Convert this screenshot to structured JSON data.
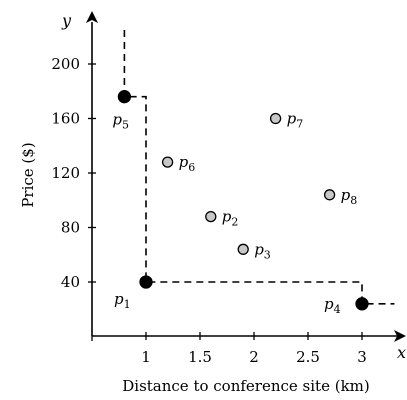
{
  "chart_data": {
    "type": "scatter",
    "xlabel": "Distance to conference site (km)",
    "ylabel": "Price ($)",
    "x_axis_var": "x",
    "y_axis_var": "y",
    "xlim": [
      0,
      3.3
    ],
    "ylim": [
      0,
      230
    ],
    "x_ticks": [
      1,
      1.5,
      2,
      2.5,
      3
    ],
    "x_tick_labels": [
      "1",
      "1.5",
      "2",
      "2.5",
      "3"
    ],
    "y_ticks": [
      40,
      80,
      120,
      160,
      200
    ],
    "y_tick_labels": [
      "40",
      "80",
      "120",
      "160",
      "200"
    ],
    "grid": false,
    "points": [
      {
        "label": "p",
        "sub": "1",
        "x": 1.0,
        "y": 40,
        "style": "filled",
        "label_pos": "bottom-left"
      },
      {
        "label": "p",
        "sub": "2",
        "x": 1.6,
        "y": 88,
        "style": "hollow",
        "label_pos": "right"
      },
      {
        "label": "p",
        "sub": "3",
        "x": 1.9,
        "y": 64,
        "style": "hollow",
        "label_pos": "right"
      },
      {
        "label": "p",
        "sub": "4",
        "x": 3.0,
        "y": 24,
        "style": "filled",
        "label_pos": "left"
      },
      {
        "label": "p",
        "sub": "5",
        "x": 0.8,
        "y": 176,
        "style": "filled",
        "label_pos": "bottom"
      },
      {
        "label": "p",
        "sub": "6",
        "x": 1.2,
        "y": 128,
        "style": "hollow",
        "label_pos": "right"
      },
      {
        "label": "p",
        "sub": "7",
        "x": 2.2,
        "y": 160,
        "style": "hollow",
        "label_pos": "right"
      },
      {
        "label": "p",
        "sub": "8",
        "x": 2.7,
        "y": 104,
        "style": "hollow",
        "label_pos": "right"
      }
    ],
    "staircase": [
      [
        0.8,
        225
      ],
      [
        0.8,
        176
      ],
      [
        1.0,
        176
      ],
      [
        1.0,
        40
      ],
      [
        3.0,
        40
      ],
      [
        3.0,
        24
      ],
      [
        3.3,
        24
      ]
    ],
    "colors": {
      "filled_point": "#000000",
      "hollow_point": "#c8c8c8",
      "line": "#000000"
    }
  }
}
